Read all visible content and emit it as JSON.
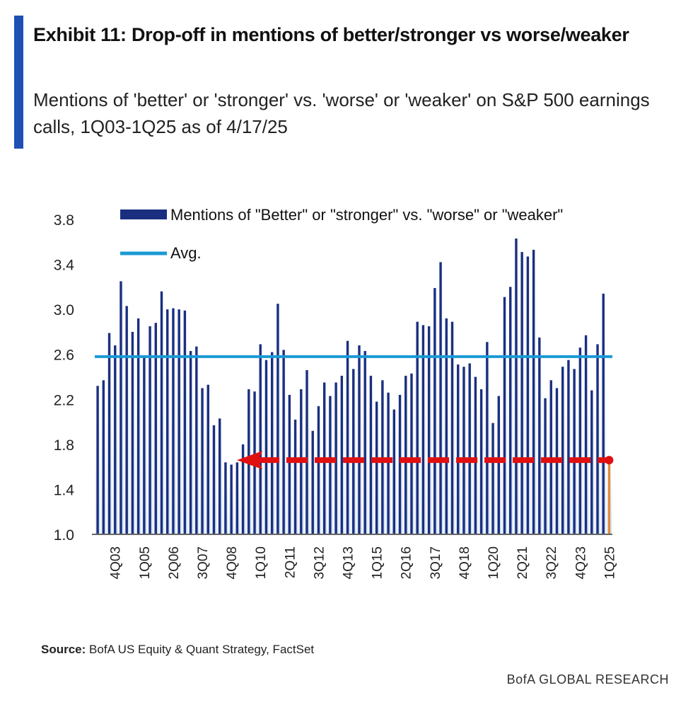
{
  "header": {
    "title": "Exhibit 11: Drop-off in mentions of better/stronger vs worse/weaker",
    "subtitle": "Mentions of 'better' or 'stronger' vs. 'worse' or 'weaker' on S&P 500 earnings calls, 1Q03-1Q25 as of 4/17/25"
  },
  "footer": {
    "source_label": "Source:",
    "source_text": " BofA US Equity & Quant Strategy, FactSet",
    "brand": "BofA GLOBAL RESEARCH"
  },
  "colors": {
    "bars": "#1a2f80",
    "avg": "#1a9ad6",
    "highlight_bar": "#e08a3c",
    "arrow": "#e01010",
    "accent": "#1f4fb4"
  },
  "chart_data": {
    "type": "bar",
    "title": "",
    "xlabel": "",
    "ylabel": "",
    "ylim": [
      1.0,
      3.8
    ],
    "yticks": [
      "1.0",
      "1.4",
      "1.8",
      "2.2",
      "2.6",
      "3.0",
      "3.4",
      "3.8"
    ],
    "xtick_labels": [
      "4Q03",
      "1Q05",
      "2Q06",
      "3Q07",
      "4Q08",
      "1Q10",
      "2Q11",
      "3Q12",
      "4Q13",
      "1Q15",
      "2Q16",
      "3Q17",
      "4Q18",
      "1Q20",
      "2Q21",
      "3Q22",
      "4Q23",
      "1Q25"
    ],
    "legend": {
      "placement": "top",
      "bars": "Mentions of \"Better\" or \"stronger\" vs. \"worse\" or \"weaker\"",
      "avg": "Avg."
    },
    "categories": [
      "1Q03",
      "2Q03",
      "3Q03",
      "4Q03",
      "1Q04",
      "2Q04",
      "3Q04",
      "4Q04",
      "1Q05",
      "2Q05",
      "3Q05",
      "4Q05",
      "1Q06",
      "2Q06",
      "3Q06",
      "4Q06",
      "1Q07",
      "2Q07",
      "3Q07",
      "4Q07",
      "1Q08",
      "2Q08",
      "3Q08",
      "4Q08",
      "1Q09",
      "2Q09",
      "3Q09",
      "4Q09",
      "1Q10",
      "2Q10",
      "3Q10",
      "4Q10",
      "1Q11",
      "2Q11",
      "3Q11",
      "4Q11",
      "1Q12",
      "2Q12",
      "3Q12",
      "4Q12",
      "1Q13",
      "2Q13",
      "3Q13",
      "4Q13",
      "1Q14",
      "2Q14",
      "3Q14",
      "4Q14",
      "1Q15",
      "2Q15",
      "3Q15",
      "4Q15",
      "1Q16",
      "2Q16",
      "3Q16",
      "4Q16",
      "1Q17",
      "2Q17",
      "3Q17",
      "4Q17",
      "1Q18",
      "2Q18",
      "3Q18",
      "4Q18",
      "1Q19",
      "2Q19",
      "3Q19",
      "4Q19",
      "1Q20",
      "2Q20",
      "3Q20",
      "4Q20",
      "1Q21",
      "2Q21",
      "3Q21",
      "4Q21",
      "1Q22",
      "2Q22",
      "3Q22",
      "4Q22",
      "1Q23",
      "2Q23",
      "3Q23",
      "4Q23",
      "1Q24",
      "2Q24",
      "3Q24",
      "4Q24",
      "1Q25"
    ],
    "series": [
      {
        "name": "Mentions of \"Better\" or \"stronger\" vs. \"worse\" or \"weaker\"",
        "values": [
          2.32,
          2.37,
          2.79,
          2.68,
          3.25,
          3.03,
          2.8,
          2.92,
          2.58,
          2.85,
          2.88,
          3.16,
          3.0,
          3.01,
          3.0,
          2.99,
          2.63,
          2.67,
          2.3,
          2.33,
          1.97,
          2.03,
          1.64,
          1.62,
          1.64,
          1.8,
          2.29,
          2.27,
          2.69,
          2.55,
          2.62,
          3.05,
          2.64,
          2.24,
          2.02,
          2.29,
          2.46,
          1.92,
          2.14,
          2.35,
          2.23,
          2.35,
          2.41,
          2.72,
          2.47,
          2.68,
          2.63,
          2.41,
          2.18,
          2.37,
          2.26,
          2.11,
          2.24,
          2.41,
          2.43,
          2.89,
          2.86,
          2.85,
          3.19,
          3.42,
          2.92,
          2.89,
          2.51,
          2.49,
          2.52,
          2.4,
          2.29,
          2.71,
          1.99,
          2.23,
          3.11,
          3.2,
          3.63,
          3.51,
          3.47,
          3.53,
          2.75,
          2.21,
          2.37,
          2.3,
          2.49,
          2.55,
          2.47,
          2.66,
          2.77,
          2.28,
          2.69,
          3.14,
          1.66
        ]
      }
    ],
    "average": 2.58,
    "highlight": {
      "category": "1Q25",
      "value": 1.66,
      "arrow_to": "4Q08"
    }
  }
}
